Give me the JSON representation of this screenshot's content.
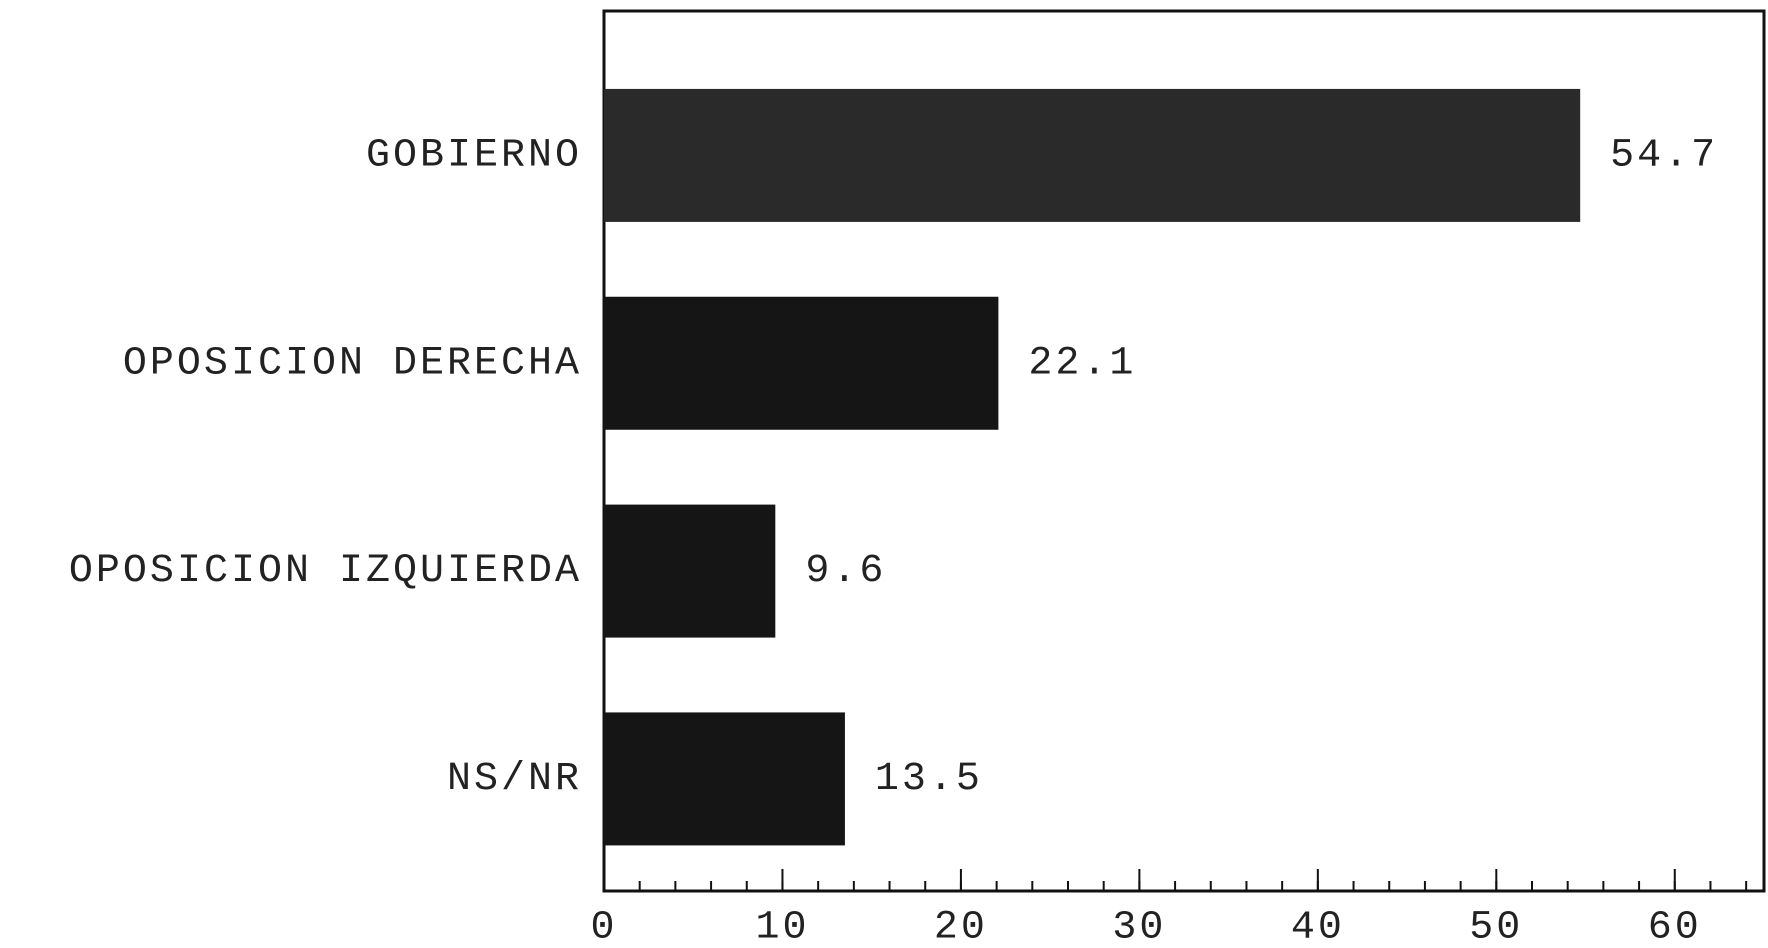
{
  "chart_data": {
    "type": "bar",
    "orientation": "horizontal",
    "categories": [
      "GOBIERNO",
      "OPOSICION DERECHA",
      "OPOSICION IZQUIERDA",
      "NS/NR"
    ],
    "values": [
      54.7,
      22.1,
      9.6,
      13.5
    ],
    "colors": [
      "#2a2a2a",
      "#151515",
      "#151515",
      "#151515"
    ],
    "xlim": [
      0,
      65
    ],
    "xticks": [
      0,
      10,
      20,
      30,
      40,
      50,
      60
    ],
    "minor_tick_interval": 2,
    "grid": false
  }
}
